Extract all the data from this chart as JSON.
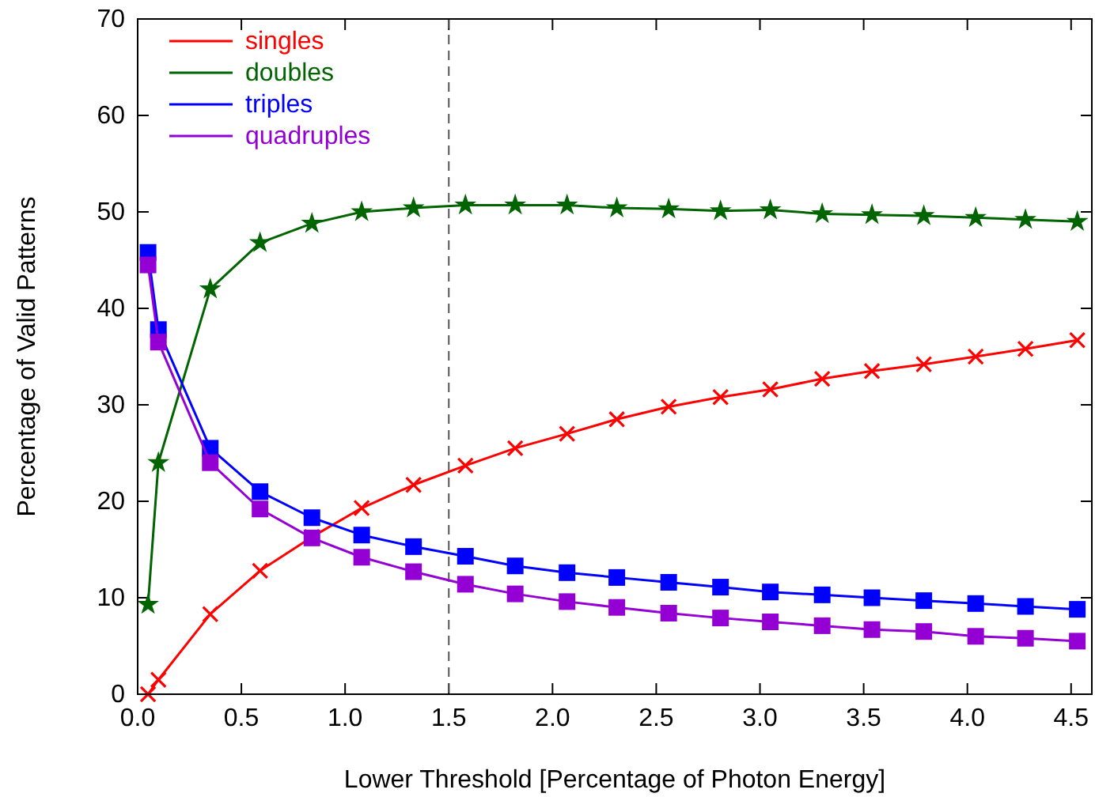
{
  "chart_data": {
    "type": "line",
    "xlabel": "Lower Threshold [Percentage of Photon Energy]",
    "ylabel": "Percentage of Valid Patterns",
    "x": [
      0.05,
      0.1,
      0.35,
      0.59,
      0.84,
      1.08,
      1.33,
      1.58,
      1.82,
      2.07,
      2.31,
      2.56,
      2.81,
      3.05,
      3.3,
      3.54,
      3.79,
      4.04,
      4.28,
      4.53
    ],
    "series": [
      {
        "name": "singles",
        "color": "#ff0000",
        "marker": "cross",
        "values": [
          0,
          1.5,
          8.3,
          12.8,
          16.3,
          19.3,
          21.7,
          23.7,
          25.5,
          27,
          28.5,
          29.8,
          30.8,
          31.6,
          32.7,
          33.5,
          34.2,
          35,
          35.8,
          36.7
        ]
      },
      {
        "name": "doubles",
        "color": "#006400",
        "marker": "star",
        "values": [
          9.3,
          24,
          42,
          46.8,
          48.8,
          50,
          50.4,
          50.7,
          50.7,
          50.7,
          50.4,
          50.3,
          50.1,
          50.2,
          49.8,
          49.7,
          49.6,
          49.4,
          49.2,
          49
        ]
      },
      {
        "name": "triples",
        "color": "#0000ff",
        "marker": "square",
        "values": [
          45.8,
          37.8,
          25.5,
          21,
          18.3,
          16.5,
          15.3,
          14.3,
          13.3,
          12.6,
          12.1,
          11.6,
          11.1,
          10.6,
          10.3,
          10,
          9.7,
          9.4,
          9.1,
          8.8
        ]
      },
      {
        "name": "quadruples",
        "color": "#9400d3",
        "marker": "square",
        "values": [
          44.5,
          36.5,
          24,
          19.2,
          16.2,
          14.2,
          12.7,
          11.4,
          10.4,
          9.6,
          9,
          8.4,
          7.9,
          7.5,
          7.1,
          6.7,
          6.5,
          6,
          5.8,
          5.5
        ]
      }
    ],
    "xlim": [
      0,
      4.6
    ],
    "xticks": [
      {
        "value": 0,
        "label": "0.0"
      },
      0.5,
      {
        "value": 1,
        "label": "1.0"
      },
      1.5,
      {
        "value": 2,
        "label": "2.0"
      },
      2.5,
      {
        "value": 3,
        "label": "3.0"
      },
      3.5,
      {
        "value": 4,
        "label": "4.0"
      },
      4.5
    ],
    "ylim": [
      0,
      70
    ],
    "yticks": [
      0,
      10,
      20,
      30,
      40,
      50,
      60,
      70
    ],
    "ref_lines": [
      {
        "axis": "x",
        "value": 1.5,
        "color": "#555555",
        "line_style": "dashed"
      }
    ],
    "legend": "top left",
    "grid": false,
    "line_style": "solid"
  }
}
